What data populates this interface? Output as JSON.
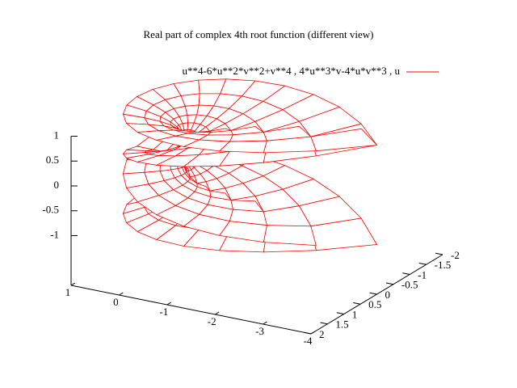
{
  "chart_data": {
    "type": "surface3d",
    "title": "Real part of complex 4th root function (different view)",
    "series": [
      {
        "name": "u**4-6*u**2*v**2+v**4 , 4*u**3*v-4*u*v**3 , u",
        "color": "#ff0000"
      }
    ],
    "xlim": [
      -4,
      1
    ],
    "xticks": [
      1,
      0,
      -1,
      -2,
      -3,
      -4
    ],
    "ylim": [
      -2,
      2
    ],
    "yticks": [
      2,
      1.5,
      1,
      0.5,
      0,
      -0.5,
      -1,
      -1.5,
      -2
    ],
    "zlim": [
      -1,
      1
    ],
    "zticks": [
      1,
      0.5,
      0,
      -0.5,
      -1
    ]
  }
}
